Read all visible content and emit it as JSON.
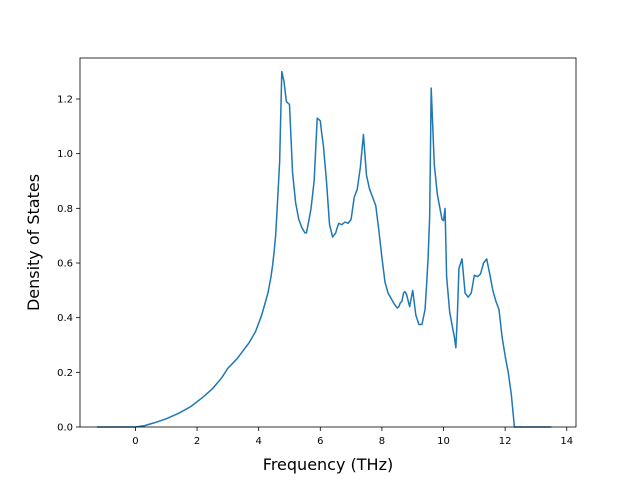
{
  "chart_data": {
    "type": "line",
    "title": "",
    "xlabel": "Frequency (THz)",
    "ylabel": "Density of States",
    "xlim": [
      -1.8,
      14.3
    ],
    "ylim": [
      0.0,
      1.35
    ],
    "xticks": [
      "0",
      "2",
      "4",
      "6",
      "8",
      "10",
      "12",
      "14"
    ],
    "yticks": [
      "0.0",
      "0.2",
      "0.4",
      "0.6",
      "0.8",
      "1.0",
      "1.2"
    ],
    "grid": false,
    "legend": "none",
    "series": [
      {
        "color": "#1f77b4",
        "x": [
          -1.25,
          0.0,
          0.3,
          0.6,
          1.0,
          1.4,
          1.8,
          2.2,
          2.5,
          2.8,
          3.0,
          3.3,
          3.5,
          3.7,
          3.9,
          4.1,
          4.2,
          4.3,
          4.35,
          4.4,
          4.45,
          4.5,
          4.55,
          4.6,
          4.68,
          4.75,
          4.82,
          4.9,
          5.0,
          5.1,
          5.2,
          5.3,
          5.4,
          5.5,
          5.55,
          5.62,
          5.7,
          5.8,
          5.9,
          6.0,
          6.05,
          6.1,
          6.2,
          6.3,
          6.4,
          6.5,
          6.55,
          6.6,
          6.7,
          6.8,
          6.9,
          7.0,
          7.05,
          7.1,
          7.2,
          7.3,
          7.4,
          7.5,
          7.6,
          7.7,
          7.8,
          7.9,
          8.0,
          8.1,
          8.2,
          8.3,
          8.4,
          8.5,
          8.55,
          8.6,
          8.65,
          8.7,
          8.75,
          8.8,
          8.9,
          9.0,
          9.1,
          9.2,
          9.3,
          9.4,
          9.45,
          9.5,
          9.55,
          9.6,
          9.7,
          9.8,
          9.9,
          9.95,
          10.0,
          10.05,
          10.1,
          10.2,
          10.3,
          10.35,
          10.4,
          10.45,
          10.5,
          10.6,
          10.7,
          10.8,
          10.9,
          11.0,
          11.1,
          11.2,
          11.3,
          11.4,
          11.5,
          11.6,
          11.7,
          11.8,
          11.9,
          12.0,
          12.1,
          12.2,
          12.25,
          12.3,
          12.4,
          13.5
        ],
        "y": [
          0.0,
          0.0,
          0.005,
          0.015,
          0.03,
          0.05,
          0.075,
          0.11,
          0.14,
          0.18,
          0.215,
          0.25,
          0.28,
          0.31,
          0.35,
          0.41,
          0.45,
          0.49,
          0.52,
          0.55,
          0.59,
          0.64,
          0.7,
          0.8,
          0.97,
          1.3,
          1.265,
          1.19,
          1.18,
          0.93,
          0.82,
          0.76,
          0.73,
          0.71,
          0.71,
          0.75,
          0.8,
          0.9,
          1.13,
          1.12,
          1.07,
          1.03,
          0.9,
          0.74,
          0.695,
          0.71,
          0.73,
          0.745,
          0.74,
          0.75,
          0.745,
          0.76,
          0.8,
          0.84,
          0.87,
          0.95,
          1.07,
          0.92,
          0.87,
          0.84,
          0.81,
          0.72,
          0.62,
          0.53,
          0.49,
          0.47,
          0.45,
          0.435,
          0.44,
          0.455,
          0.46,
          0.49,
          0.495,
          0.485,
          0.44,
          0.5,
          0.41,
          0.375,
          0.375,
          0.43,
          0.52,
          0.62,
          0.77,
          1.24,
          0.96,
          0.85,
          0.79,
          0.76,
          0.755,
          0.8,
          0.55,
          0.42,
          0.36,
          0.33,
          0.29,
          0.41,
          0.58,
          0.615,
          0.49,
          0.475,
          0.49,
          0.555,
          0.55,
          0.56,
          0.6,
          0.615,
          0.56,
          0.5,
          0.46,
          0.43,
          0.33,
          0.26,
          0.2,
          0.12,
          0.06,
          0.0,
          0.0,
          0.0
        ]
      }
    ]
  }
}
